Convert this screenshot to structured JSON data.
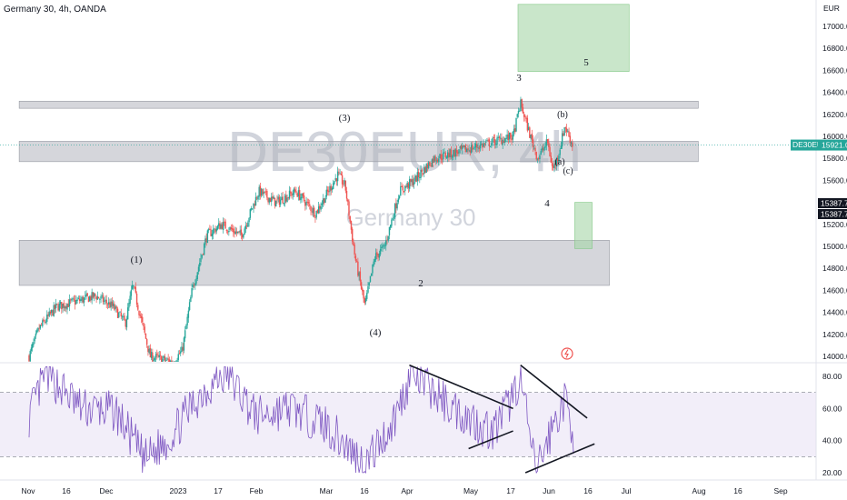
{
  "header": {
    "title": "Germany 30, 4h, OANDA"
  },
  "watermark": {
    "symbol": "DE30EUR, 4h",
    "name": "Germany 30"
  },
  "price_axis": {
    "currency": "EUR",
    "ticks": [
      "17000.0",
      "16800.0",
      "16600.0",
      "16400.0",
      "16200.0",
      "16000.0",
      "15800.0",
      "15600.0",
      "15400.0",
      "15200.0",
      "15000.0",
      "14800.0",
      "14600.0",
      "14400.0",
      "14200.0",
      "14000.0"
    ],
    "last_price_symbol": "DE30EUR",
    "last_price": "15921.0",
    "crosshair_price_1": "15387.7",
    "crosshair_price_2": "15387.7"
  },
  "rsi_axis": {
    "ticks": [
      "80.00",
      "60.00",
      "40.00",
      "20.00"
    ]
  },
  "time_axis": {
    "labels": [
      "Nov",
      "16",
      "Dec",
      "2023",
      "17",
      "Feb",
      "Mar",
      "16",
      "Apr",
      "May",
      "17",
      "Jun",
      "16",
      "Jul",
      "Aug",
      "16",
      "Sep"
    ]
  },
  "wave_labels": {
    "w1": "(1)",
    "w3": "(3)",
    "w4": "(4)",
    "i2": "2",
    "i3": "3",
    "i4": "4",
    "i5": "5",
    "a": "(a)",
    "b": "(b)",
    "c": "(c)"
  },
  "colors": {
    "up": "#26a69a",
    "down": "#ef5350",
    "rsi": "#7e57c2",
    "zone_gray": "#b2b5be",
    "zone_green": "#a5d6a7"
  },
  "chart_data": [
    {
      "type": "candlestick",
      "title": "Germany 30, 4h, OANDA",
      "ylabel": "EUR",
      "ylim": [
        13950,
        17200
      ],
      "x": [
        "Nov",
        "16",
        "Dec",
        "2023",
        "17",
        "Feb",
        "Mar",
        "16",
        "Apr",
        "May",
        "17",
        "Jun",
        "16",
        "Jul",
        "Aug",
        "16",
        "Sep"
      ],
      "series": [
        {
          "name": "DE30EUR",
          "anchors": [
            {
              "t": "2022-11-01",
              "price": 14000
            },
            {
              "t": "2022-11-05",
              "price": 14250
            },
            {
              "t": "2022-11-12",
              "price": 14450
            },
            {
              "t": "2022-11-20",
              "price": 14500
            },
            {
              "t": "2022-11-28",
              "price": 14550
            },
            {
              "t": "2022-12-05",
              "price": 14450
            },
            {
              "t": "2022-12-10",
              "price": 14300
            },
            {
              "t": "2022-12-13",
              "price": 14650
            },
            {
              "t": "2022-12-20",
              "price": 14000
            },
            {
              "t": "2022-12-29",
              "price": 13950
            },
            {
              "t": "2023-01-02",
              "price": 14050
            },
            {
              "t": "2023-01-06",
              "price": 14600
            },
            {
              "t": "2023-01-12",
              "price": 15100
            },
            {
              "t": "2023-01-18",
              "price": 15200
            },
            {
              "t": "2023-01-26",
              "price": 15100
            },
            {
              "t": "2023-02-02",
              "price": 15500
            },
            {
              "t": "2023-02-09",
              "price": 15400
            },
            {
              "t": "2023-02-17",
              "price": 15500
            },
            {
              "t": "2023-02-25",
              "price": 15300
            },
            {
              "t": "2023-03-06",
              "price": 15650
            },
            {
              "t": "2023-03-09",
              "price": 15550
            },
            {
              "t": "2023-03-13",
              "price": 14900
            },
            {
              "t": "2023-03-17",
              "price": 14460
            },
            {
              "t": "2023-03-21",
              "price": 14900
            },
            {
              "t": "2023-03-25",
              "price": 15000
            },
            {
              "t": "2023-03-31",
              "price": 15500
            },
            {
              "t": "2023-04-06",
              "price": 15600
            },
            {
              "t": "2023-04-14",
              "price": 15800
            },
            {
              "t": "2023-04-22",
              "price": 15850
            },
            {
              "t": "2023-04-30",
              "price": 15900
            },
            {
              "t": "2023-05-08",
              "price": 15950
            },
            {
              "t": "2023-05-16",
              "price": 16000
            },
            {
              "t": "2023-05-19",
              "price": 16300
            },
            {
              "t": "2023-05-23",
              "price": 16000
            },
            {
              "t": "2023-05-26",
              "price": 15800
            },
            {
              "t": "2023-05-30",
              "price": 15950
            },
            {
              "t": "2023-06-01",
              "price": 15700
            },
            {
              "t": "2023-06-03",
              "price": 15800
            },
            {
              "t": "2023-06-06",
              "price": 16100
            },
            {
              "t": "2023-06-09",
              "price": 15921
            }
          ]
        }
      ],
      "annotations": {
        "gray_zones": [
          {
            "from": "2022-10-28",
            "to": "2023-07-30",
            "price_low": 16255,
            "price_high": 16320
          },
          {
            "from": "2022-10-28",
            "to": "2023-07-30",
            "price_low": 15770,
            "price_high": 15955
          },
          {
            "from": "2022-10-28",
            "to": "2023-06-24",
            "price_low": 14645,
            "price_high": 15055
          }
        ],
        "green_zones": [
          {
            "from": "2023-05-18",
            "to": "2023-07-02",
            "price_low": 16590,
            "price_high": 17200
          },
          {
            "from": "2023-06-10",
            "to": "2023-06-17",
            "price_low": 14980,
            "price_high": 15400
          }
        ],
        "last_price": 15921.0,
        "crosshair_price": 15387.7
      }
    },
    {
      "type": "line",
      "ylim": [
        15,
        90
      ],
      "series": [
        {
          "name": "RSI",
          "anchors": [
            {
              "t": "2022-11-01",
              "value": 55
            },
            {
              "t": "2022-11-08",
              "value": 82
            },
            {
              "t": "2022-11-22",
              "value": 60
            },
            {
              "t": "2022-12-06",
              "value": 58
            },
            {
              "t": "2022-12-18",
              "value": 28
            },
            {
              "t": "2022-12-28",
              "value": 42
            },
            {
              "t": "2023-01-10",
              "value": 70
            },
            {
              "t": "2023-01-20",
              "value": 82
            },
            {
              "t": "2023-02-01",
              "value": 55
            },
            {
              "t": "2023-02-15",
              "value": 60
            },
            {
              "t": "2023-03-01",
              "value": 50
            },
            {
              "t": "2023-03-17",
              "value": 25
            },
            {
              "t": "2023-03-28",
              "value": 50
            },
            {
              "t": "2023-04-05",
              "value": 82
            },
            {
              "t": "2023-04-20",
              "value": 62
            },
            {
              "t": "2023-05-08",
              "value": 45
            },
            {
              "t": "2023-05-15",
              "value": 65
            },
            {
              "t": "2023-05-19",
              "value": 80
            },
            {
              "t": "2023-05-25",
              "value": 20
            },
            {
              "t": "2023-06-02",
              "value": 52
            },
            {
              "t": "2023-06-06",
              "value": 65
            },
            {
              "t": "2023-06-10",
              "value": 42
            }
          ]
        }
      ],
      "levels": [
        70,
        30
      ],
      "trendlines": [
        {
          "from": {
            "t": "2023-04-04",
            "value": 87
          },
          "to": {
            "t": "2023-05-16",
            "value": 60
          }
        },
        {
          "from": {
            "t": "2023-04-28",
            "value": 35
          },
          "to": {
            "t": "2023-05-16",
            "value": 46
          }
        },
        {
          "from": {
            "t": "2023-05-19",
            "value": 87
          },
          "to": {
            "t": "2023-06-15",
            "value": 54
          }
        },
        {
          "from": {
            "t": "2023-05-21",
            "value": 20
          },
          "to": {
            "t": "2023-06-18",
            "value": 38
          }
        }
      ]
    }
  ]
}
